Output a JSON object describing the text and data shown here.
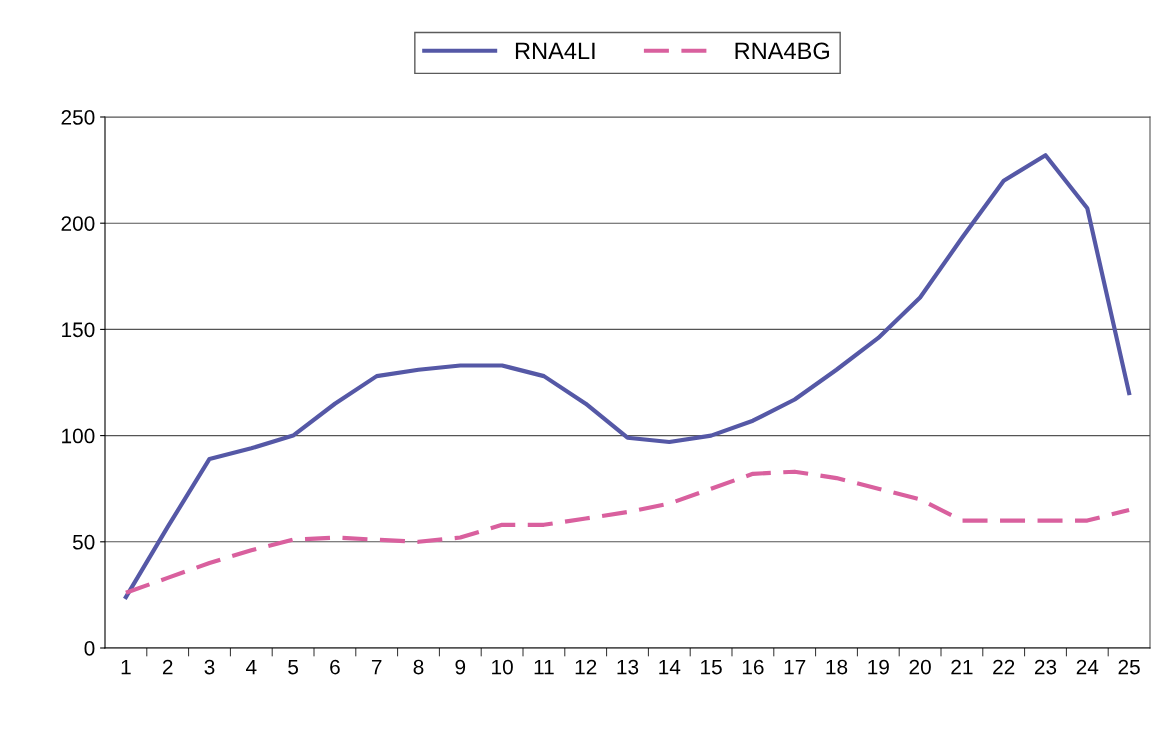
{
  "chart_data": {
    "type": "line",
    "categories": [
      "1",
      "2",
      "3",
      "4",
      "5",
      "6",
      "7",
      "8",
      "9",
      "10",
      "11",
      "12",
      "13",
      "14",
      "15",
      "16",
      "17",
      "18",
      "19",
      "20",
      "21",
      "22",
      "23",
      "24",
      "25"
    ],
    "series": [
      {
        "name": "RNA4LI",
        "color": "#5558a6",
        "line_style": "solid",
        "values": [
          24,
          57,
          89,
          94,
          100,
          115,
          128,
          131,
          133,
          133,
          128,
          115,
          99,
          97,
          100,
          107,
          117,
          131,
          146,
          165,
          193,
          220,
          232,
          207,
          120
        ]
      },
      {
        "name": "RNA4BG",
        "color": "#d9609e",
        "line_style": "dashed",
        "values": [
          26,
          33,
          40,
          46,
          51,
          52,
          51,
          50,
          52,
          58,
          58,
          61,
          64,
          68,
          75,
          82,
          83,
          80,
          75,
          70,
          60,
          60,
          60,
          60,
          65
        ]
      }
    ],
    "ylim": [
      0,
      250
    ],
    "yticks": [
      0,
      50,
      100,
      150,
      200,
      250
    ],
    "grid": "y",
    "legend": "top",
    "marker": "none"
  }
}
